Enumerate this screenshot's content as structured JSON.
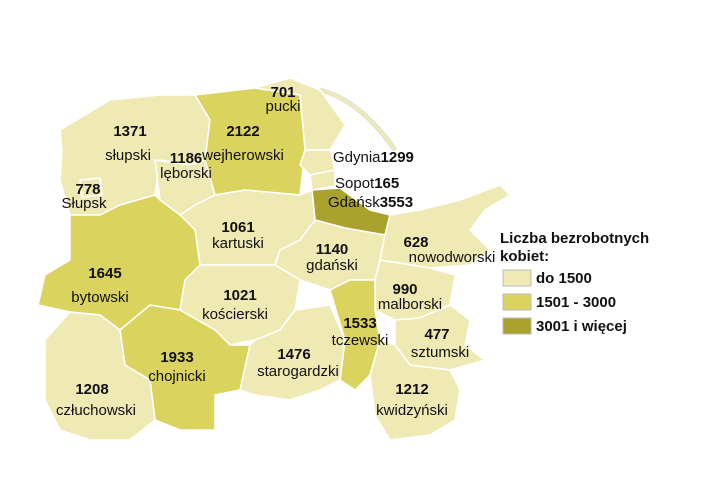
{
  "map": {
    "regions": [
      {
        "name": "pucki",
        "value": 701,
        "color": "#efe9b4"
      },
      {
        "name": "słupski",
        "value": 1371,
        "color": "#efe9b4"
      },
      {
        "name": "wejherowski",
        "value": 2122,
        "color": "#dad45e"
      },
      {
        "name": "lęborski",
        "value": 1186,
        "color": "#efe9b4"
      },
      {
        "name": "Słupsk",
        "value": 778,
        "color": "#efe9b4"
      },
      {
        "name": "Gdynia",
        "value": 1299,
        "color": "#efe9b4"
      },
      {
        "name": "Sopot",
        "value": 165,
        "color": "#efe9b4"
      },
      {
        "name": "Gdańsk",
        "value": 3553,
        "color": "#aaa22c"
      },
      {
        "name": "kartuski",
        "value": 1061,
        "color": "#efe9b4"
      },
      {
        "name": "gdański",
        "value": 1140,
        "color": "#efe9b4"
      },
      {
        "name": "nowodworski",
        "value": 628,
        "color": "#efe9b4"
      },
      {
        "name": "bytowski",
        "value": 1645,
        "color": "#dad45e"
      },
      {
        "name": "kościerski",
        "value": 1021,
        "color": "#efe9b4"
      },
      {
        "name": "malborski",
        "value": 990,
        "color": "#efe9b4"
      },
      {
        "name": "tczewski",
        "value": 1533,
        "color": "#dad45e"
      },
      {
        "name": "sztumski",
        "value": 477,
        "color": "#efe9b4"
      },
      {
        "name": "chojnicki",
        "value": 1933,
        "color": "#dad45e"
      },
      {
        "name": "starogardzki",
        "value": 1476,
        "color": "#efe9b4"
      },
      {
        "name": "człuchowski",
        "value": 1208,
        "color": "#efe9b4"
      },
      {
        "name": "kwidzyński",
        "value": 1212,
        "color": "#efe9b4"
      }
    ],
    "legend": {
      "title_lines": [
        "Liczba bezrobotnych",
        "kobiet:"
      ],
      "items": [
        {
          "label": "do 1500",
          "color": "#efe9b4"
        },
        {
          "label": "1501 - 3000",
          "color": "#dad45e"
        },
        {
          "label": "3001 i więcej",
          "color": "#aaa22c"
        }
      ]
    }
  }
}
